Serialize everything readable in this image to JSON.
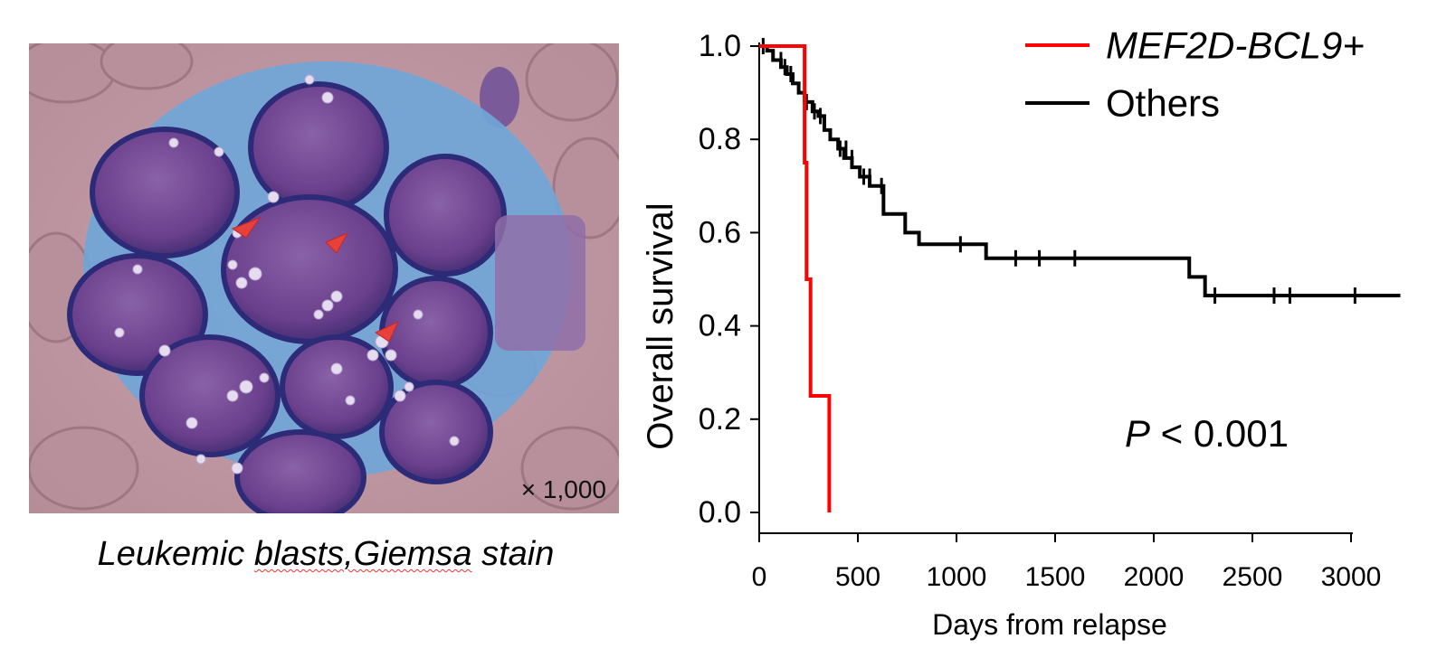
{
  "figure": {
    "micrograph": {
      "magnification": "× 1,000",
      "caption_part1": "Leukemic ",
      "caption_part2": "blasts,Giemsa",
      "caption_part3": " stain",
      "arrow_color": "#e8403a"
    },
    "chart_data": {
      "type": "line",
      "subtype": "kaplan-meier",
      "xlabel": "Days from relapse",
      "ylabel": "Overall survival",
      "xlim": [
        0,
        3250
      ],
      "ylim": [
        0,
        1.0
      ],
      "xticks": [
        0,
        500,
        1000,
        1500,
        2000,
        2500,
        3000
      ],
      "yticks": [
        0.0,
        0.2,
        0.4,
        0.6,
        0.8,
        1.0
      ],
      "xtick_labels": [
        "0",
        "500",
        "1000",
        "1500",
        "2000",
        "2500",
        "3000"
      ],
      "ytick_labels": [
        "0.0",
        "0.2",
        "0.4",
        "0.6",
        "0.8",
        "1.0"
      ],
      "annotation": {
        "italic": "P",
        "rest": " < 0.001"
      },
      "legend": "top-right",
      "series": [
        {
          "name": "MEF2D-BCL9+",
          "italic": true,
          "color": "#ff0000",
          "steps": [
            [
              0,
              1.0
            ],
            [
              230,
              1.0
            ],
            [
              230,
              0.75
            ],
            [
              240,
              0.75
            ],
            [
              240,
              0.5
            ],
            [
              260,
              0.5
            ],
            [
              260,
              0.25
            ],
            [
              355,
              0.25
            ],
            [
              355,
              0.0
            ]
          ],
          "censored": []
        },
        {
          "name": "Others",
          "italic": false,
          "color": "#000000",
          "steps": [
            [
              0,
              1.0
            ],
            [
              40,
              0.99
            ],
            [
              70,
              0.97
            ],
            [
              110,
              0.955
            ],
            [
              140,
              0.94
            ],
            [
              170,
              0.92
            ],
            [
              200,
              0.9
            ],
            [
              230,
              0.88
            ],
            [
              270,
              0.86
            ],
            [
              300,
              0.85
            ],
            [
              330,
              0.82
            ],
            [
              360,
              0.8
            ],
            [
              400,
              0.78
            ],
            [
              430,
              0.76
            ],
            [
              470,
              0.74
            ],
            [
              510,
              0.72
            ],
            [
              560,
              0.7
            ],
            [
              630,
              0.64
            ],
            [
              740,
              0.6
            ],
            [
              810,
              0.575
            ],
            [
              1150,
              0.545
            ],
            [
              2180,
              0.505
            ],
            [
              2260,
              0.465
            ],
            [
              3250,
              0.465
            ]
          ],
          "censored": [
            [
              20,
              1.0
            ],
            [
              110,
              0.97
            ],
            [
              130,
              0.955
            ],
            [
              160,
              0.94
            ],
            [
              240,
              0.88
            ],
            [
              280,
              0.86
            ],
            [
              310,
              0.85
            ],
            [
              410,
              0.78
            ],
            [
              440,
              0.78
            ],
            [
              470,
              0.76
            ],
            [
              530,
              0.72
            ],
            [
              560,
              0.72
            ],
            [
              620,
              0.7
            ],
            [
              1020,
              0.575
            ],
            [
              1300,
              0.545
            ],
            [
              1420,
              0.545
            ],
            [
              1600,
              0.545
            ],
            [
              2310,
              0.465
            ],
            [
              2610,
              0.465
            ],
            [
              2690,
              0.465
            ],
            [
              3020,
              0.465
            ]
          ]
        }
      ]
    }
  }
}
